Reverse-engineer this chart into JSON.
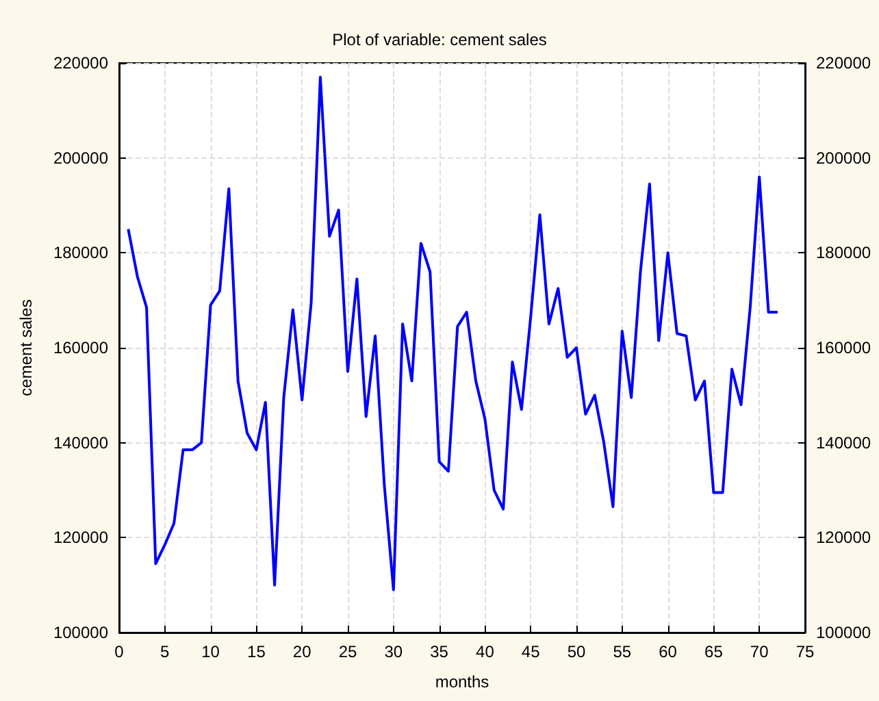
{
  "chart_data": {
    "type": "line",
    "title": "Plot of variable: cement sales",
    "xlabel": "months",
    "ylabel": "cement sales",
    "x": [
      1,
      2,
      3,
      4,
      5,
      6,
      7,
      8,
      9,
      10,
      11,
      12,
      13,
      14,
      15,
      16,
      17,
      18,
      19,
      20,
      21,
      22,
      23,
      24,
      25,
      26,
      27,
      28,
      29,
      30,
      31,
      32,
      33,
      34,
      35,
      36,
      37,
      38,
      39,
      40,
      41,
      42,
      43,
      44,
      45,
      46,
      47,
      48,
      49,
      50,
      51,
      52,
      53,
      54,
      55,
      56,
      57,
      58,
      59,
      60,
      61,
      62,
      63,
      64,
      65,
      66,
      67,
      68,
      69,
      70,
      71,
      72
    ],
    "series": [
      {
        "color": "#0000ff",
        "values": [
          185000,
          175000,
          168500,
          114500,
          118500,
          123000,
          138500,
          138500,
          140000,
          169000,
          172000,
          193500,
          153000,
          142000,
          138500,
          148500,
          110000,
          149500,
          168000,
          149000,
          169500,
          217000,
          183500,
          189000,
          155000,
          174500,
          145500,
          162500,
          131000,
          109000,
          165000,
          153000,
          182000,
          176000,
          136000,
          134000,
          164500,
          167500,
          153000,
          145000,
          130000,
          126000,
          157000,
          147000,
          166500,
          188000,
          165000,
          172500,
          158000,
          160000,
          146000,
          150000,
          140000,
          126500,
          163500,
          149500,
          176000,
          194500,
          161500,
          180000,
          163000,
          162500,
          149000,
          153000,
          129500,
          129500,
          155500,
          148000,
          168500,
          196000,
          167500,
          167500
        ]
      }
    ],
    "xlim": [
      0,
      75
    ],
    "xticks": [
      0,
      5,
      10,
      15,
      20,
      25,
      30,
      35,
      40,
      45,
      50,
      55,
      60,
      65,
      70,
      75
    ],
    "ylim": [
      100000,
      220000
    ],
    "yticks": [
      100000,
      120000,
      140000,
      160000,
      180000,
      200000,
      220000
    ],
    "y2lim": [
      100000,
      220000
    ],
    "y2ticks": [
      100000,
      120000,
      140000,
      160000,
      180000,
      200000,
      220000
    ],
    "grid": true,
    "marker": "none",
    "line_style": "solid"
  }
}
